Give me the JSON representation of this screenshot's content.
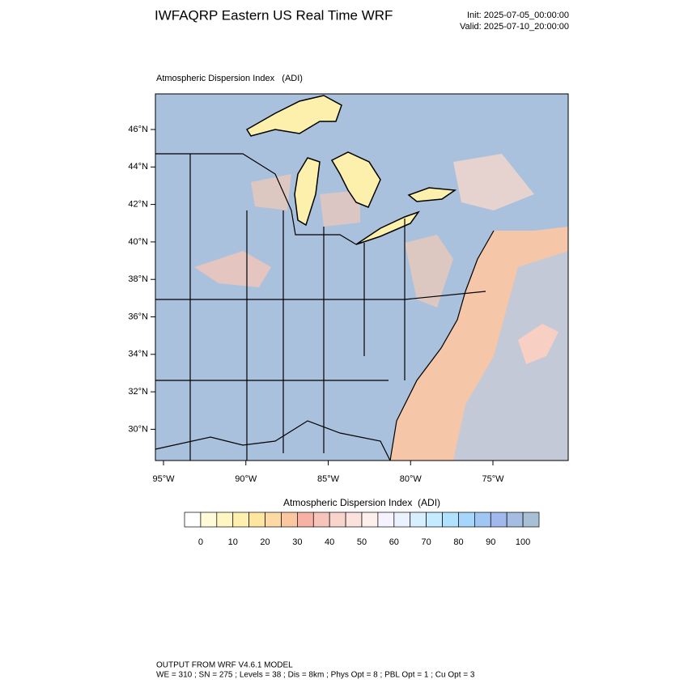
{
  "header": {
    "title": "IWFAQRP Eastern US Real Time WRF",
    "init": "Init: 2025-07-05_00:00:00",
    "valid": "Valid: 2025-07-10_20:00:00"
  },
  "map": {
    "title": "Atmospheric Dispersion Index   (ADI)",
    "lat_ticks": [
      {
        "value": 46,
        "label": "46°N"
      },
      {
        "value": 44,
        "label": "44°N"
      },
      {
        "value": 42,
        "label": "42°N"
      },
      {
        "value": 40,
        "label": "40°N"
      },
      {
        "value": 38,
        "label": "38°N"
      },
      {
        "value": 36,
        "label": "36°N"
      },
      {
        "value": 34,
        "label": "34°N"
      },
      {
        "value": 32,
        "label": "32°N"
      },
      {
        "value": 30,
        "label": "30°N"
      }
    ],
    "lon_ticks": [
      {
        "value": -95,
        "label": "95°W"
      },
      {
        "value": -90,
        "label": "90°W"
      },
      {
        "value": -85,
        "label": "85°W"
      },
      {
        "value": -80,
        "label": "80°W"
      },
      {
        "value": -75,
        "label": "75°W"
      }
    ]
  },
  "colorbar": {
    "label": "Atmospheric Dispersion Index  (ADI)",
    "ticks": [
      0,
      10,
      20,
      30,
      40,
      50,
      60,
      70,
      80,
      90,
      100
    ],
    "colors": [
      "#ffffff",
      "#fffbd8",
      "#fff6c4",
      "#fff0b0",
      "#ffe6a0",
      "#fdd9a4",
      "#fbc7a0",
      "#f7b2a4",
      "#f7c4bc",
      "#f9d4cc",
      "#fbe2dc",
      "#fdf0ec",
      "#f6f2ff",
      "#eaf2ff",
      "#d8efff",
      "#c4ebff",
      "#b0e2ff",
      "#a6d6fb",
      "#a0c6f4",
      "#a0b8ec",
      "#a6bde2",
      "#a9bfd6"
    ]
  },
  "footer": {
    "lines": [
      "OUTPUT FROM WRF V4.6.1 MODEL",
      "WE = 310 ; SN = 275 ; Levels = 38 ; Dis = 8km ; Phys Opt = 8 ; PBL Opt = 1 ; Cu Opt = 3"
    ]
  }
}
